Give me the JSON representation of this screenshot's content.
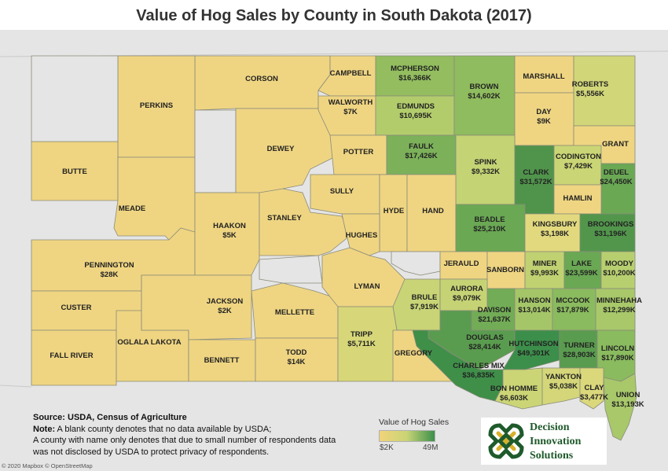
{
  "title": "Value of Hog Sales by County in South Dakota (2017)",
  "note": {
    "source": "Source: USDA, Census of Agriculture",
    "note_label": "Note:",
    "line1": " A blank county denotes that no data available by USDA;",
    "line2": "A county with name only denotes that due to small number of respondents data",
    "line3": "was not disclosed by USDA to protect privacy of respondents."
  },
  "legend": {
    "title": "Value of Hog Sales",
    "min_label": "$2K",
    "max_label": "49M",
    "color_low": "#f2d37a",
    "color_high": "#3c8f4a"
  },
  "logo": {
    "line1": "Decision",
    "line2": "Innovation",
    "line3": "Solutions",
    "color": "#1f5a2b"
  },
  "credit": "© 2020 Mapbox © OpenStreetMap",
  "colors": {
    "suppressed": "#efd582",
    "no_data": "#e5e5e5",
    "background": "#e5e5e5"
  },
  "counties": [
    {
      "name": "CORSON",
      "value": ""
    },
    {
      "name": "CAMPBELL",
      "value": ""
    },
    {
      "name": "MCPHERSON",
      "value": "$16,366K"
    },
    {
      "name": "BROWN",
      "value": "$14,602K"
    },
    {
      "name": "MARSHALL",
      "value": ""
    },
    {
      "name": "ROBERTS",
      "value": "$5,556K"
    },
    {
      "name": "PERKINS",
      "value": ""
    },
    {
      "name": "WALWORTH",
      "value": "$7K"
    },
    {
      "name": "EDMUNDS",
      "value": "$10,695K"
    },
    {
      "name": "DAY",
      "value": "$9K"
    },
    {
      "name": "GRANT",
      "value": ""
    },
    {
      "name": "DEWEY",
      "value": ""
    },
    {
      "name": "POTTER",
      "value": ""
    },
    {
      "name": "FAULK",
      "value": "$17,426K"
    },
    {
      "name": "SPINK",
      "value": "$9,332K"
    },
    {
      "name": "CLARK",
      "value": "$31,572K"
    },
    {
      "name": "CODINGTON",
      "value": "$7,429K"
    },
    {
      "name": "DEUEL",
      "value": "$24,450K"
    },
    {
      "name": "BUTTE",
      "value": ""
    },
    {
      "name": "SULLY",
      "value": ""
    },
    {
      "name": "HYDE",
      "value": ""
    },
    {
      "name": "HAND",
      "value": ""
    },
    {
      "name": "HAMLIN",
      "value": ""
    },
    {
      "name": "MEADE",
      "value": ""
    },
    {
      "name": "STANLEY",
      "value": ""
    },
    {
      "name": "HUGHES",
      "value": ""
    },
    {
      "name": "BEADLE",
      "value": "$25,210K"
    },
    {
      "name": "KINGSBURY",
      "value": "$3,198K"
    },
    {
      "name": "BROOKINGS",
      "value": "$31,196K"
    },
    {
      "name": "HAAKON",
      "value": "$5K"
    },
    {
      "name": "JERAULD",
      "value": ""
    },
    {
      "name": "SANBORN",
      "value": ""
    },
    {
      "name": "MINER",
      "value": "$9,993K"
    },
    {
      "name": "LAKE",
      "value": "$23,599K"
    },
    {
      "name": "MOODY",
      "value": "$10,200K"
    },
    {
      "name": "PENNINGTON",
      "value": "$28K"
    },
    {
      "name": "LYMAN",
      "value": ""
    },
    {
      "name": "BRULE",
      "value": "$7,919K"
    },
    {
      "name": "AURORA",
      "value": "$9,079K"
    },
    {
      "name": "DAVISON",
      "value": "$21,637K"
    },
    {
      "name": "HANSON",
      "value": "$13,014K"
    },
    {
      "name": "MCCOOK",
      "value": "$17,879K"
    },
    {
      "name": "MINNEHAHA",
      "value": "$12,299K"
    },
    {
      "name": "CUSTER",
      "value": ""
    },
    {
      "name": "JACKSON",
      "value": "$2K"
    },
    {
      "name": "MELLETTE",
      "value": ""
    },
    {
      "name": "TRIPP",
      "value": "$5,711K"
    },
    {
      "name": "DOUGLAS",
      "value": "$28,414K"
    },
    {
      "name": "HUTCHINSON",
      "value": "$49,301K"
    },
    {
      "name": "TURNER",
      "value": "$28,903K"
    },
    {
      "name": "LINCOLN",
      "value": "$17,890K"
    },
    {
      "name": "FALL RIVER",
      "value": ""
    },
    {
      "name": "OGLALA LAKOTA",
      "value": ""
    },
    {
      "name": "BENNETT",
      "value": ""
    },
    {
      "name": "TODD",
      "value": "$14K"
    },
    {
      "name": "GREGORY",
      "value": ""
    },
    {
      "name": "CHARLES MIX",
      "value": "$36,835K"
    },
    {
      "name": "BON HOMME",
      "value": "$6,603K"
    },
    {
      "name": "YANKTON",
      "value": "$5,038K"
    },
    {
      "name": "CLAY",
      "value": "$3,477K"
    },
    {
      "name": "UNION",
      "value": "$13,193K"
    }
  ]
}
